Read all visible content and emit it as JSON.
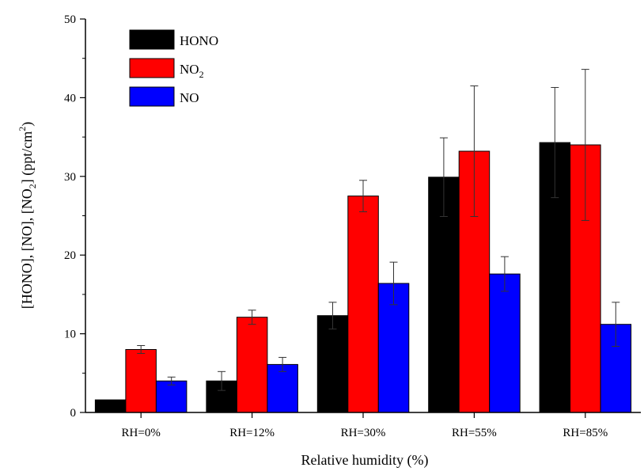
{
  "chart_data": {
    "type": "bar",
    "title": "",
    "xlabel": "Relative humidity (%)",
    "ylabel_parts": {
      "pre": "[HONO], [NO], [NO",
      "sub": "2",
      "mid": "] (ppt/cm",
      "sup": "2",
      "post": ")"
    },
    "categories": [
      "RH=0%",
      "RH=12%",
      "RH=30%",
      "RH=55%",
      "RH=85%"
    ],
    "ylim": [
      0,
      50
    ],
    "yticks": [
      0,
      10,
      20,
      30,
      40,
      50
    ],
    "grid": false,
    "legend_position": "top-left",
    "series": [
      {
        "name": "HONO",
        "name_parts": {
          "main": "HONO",
          "sub": ""
        },
        "color": "#000000",
        "values": [
          1.6,
          4.0,
          12.3,
          29.9,
          34.3
        ],
        "errors": [
          0,
          1.2,
          1.7,
          5.0,
          7.0
        ]
      },
      {
        "name": "NO2",
        "name_parts": {
          "main": "NO",
          "sub": "2"
        },
        "color": "#ff0000",
        "values": [
          8.0,
          12.1,
          27.5,
          33.2,
          34.0
        ],
        "errors": [
          0.5,
          0.9,
          2.0,
          8.3,
          9.6
        ]
      },
      {
        "name": "NO",
        "name_parts": {
          "main": "NO",
          "sub": ""
        },
        "color": "#0000ff",
        "values": [
          4.0,
          6.1,
          16.4,
          17.6,
          11.2
        ],
        "errors": [
          0.5,
          0.9,
          2.7,
          2.2,
          2.8
        ]
      }
    ]
  }
}
